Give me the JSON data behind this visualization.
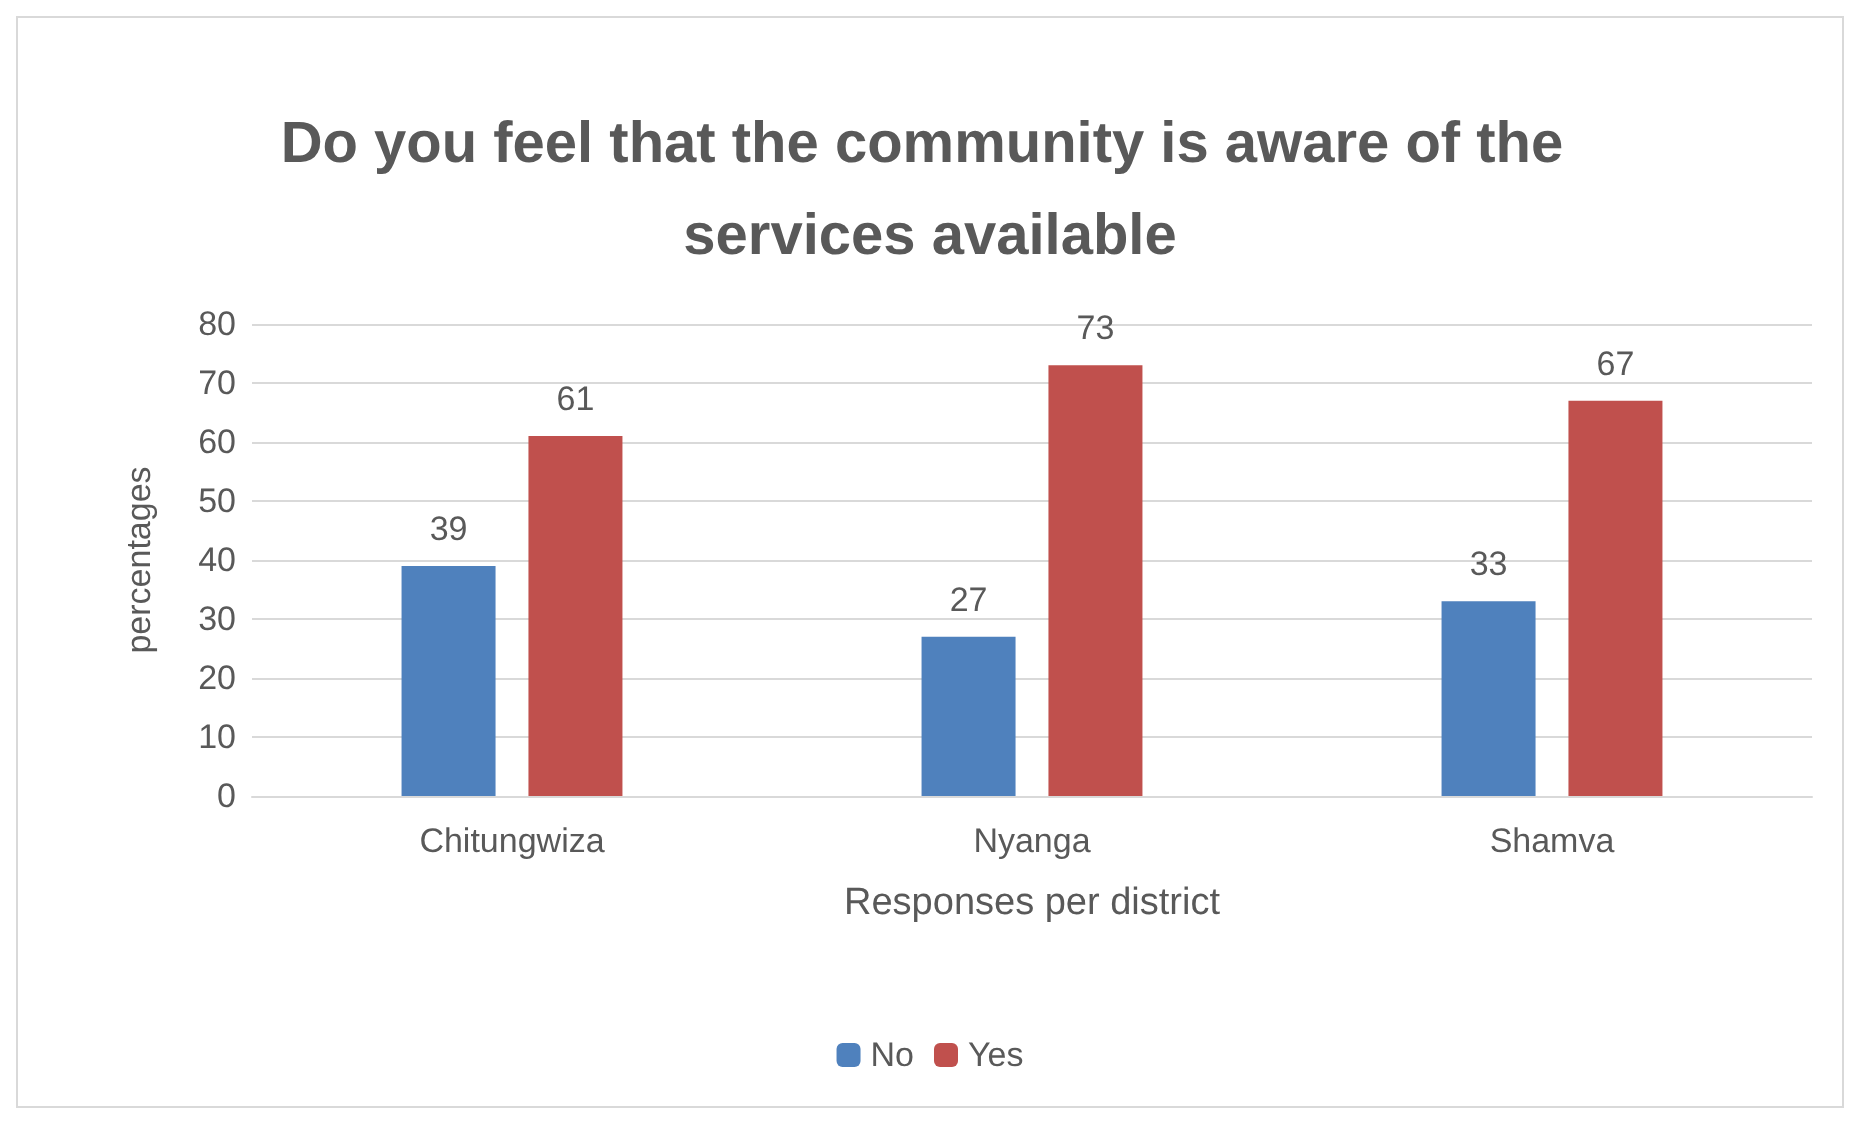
{
  "chart_data": {
    "type": "bar",
    "title": "Do you feel that the community is aware of the services available",
    "xlabel": "Responses per district",
    "ylabel": "percentages",
    "categories": [
      "Chitungwiza",
      "Nyanga",
      "Shamva"
    ],
    "series": [
      {
        "name": "No",
        "color": "#4f81bd",
        "values": [
          39,
          27,
          33
        ]
      },
      {
        "name": "Yes",
        "color": "#c0504d",
        "values": [
          61,
          73,
          67
        ]
      }
    ],
    "ylim": [
      0,
      80
    ],
    "yticks": [
      0,
      10,
      20,
      30,
      40,
      50,
      60,
      70,
      80
    ],
    "grid": "y",
    "legend": "bottom",
    "data_labels": true
  }
}
